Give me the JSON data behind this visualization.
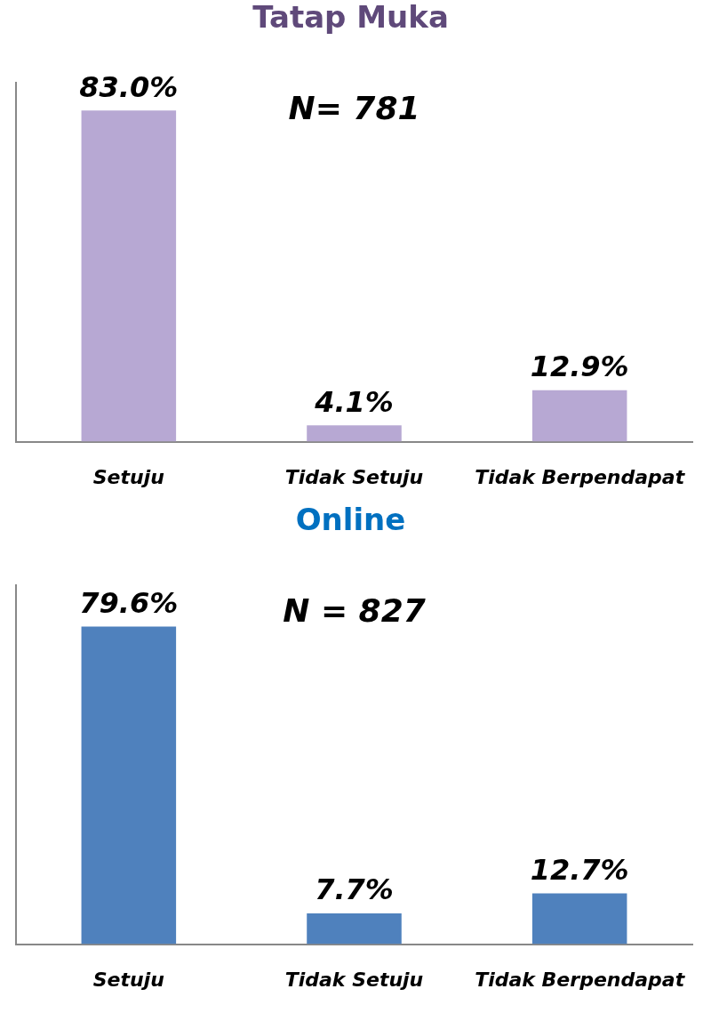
{
  "chart_data": [
    {
      "type": "bar",
      "title": "Tatap Muka",
      "categories": [
        "Setuju",
        "Tidak Setuju",
        "Tidak Berpendapat"
      ],
      "values": [
        83.0,
        4.1,
        12.9
      ],
      "value_labels": [
        "83.0%",
        "4.1%",
        "12.9%"
      ],
      "color": "#b7a8d3",
      "annotations": [
        "N= 781"
      ],
      "grid": false,
      "legend": false
    },
    {
      "type": "bar",
      "title": "Online",
      "categories": [
        "Setuju",
        "Tidak Setuju",
        "Tidak Berpendapat"
      ],
      "values": [
        79.6,
        7.7,
        12.7
      ],
      "value_labels": [
        "79.6%",
        "7.7%",
        "12.7%"
      ],
      "color": "#4f81bd",
      "annotations": [
        "N = 827"
      ],
      "grid": false,
      "legend": false
    }
  ]
}
